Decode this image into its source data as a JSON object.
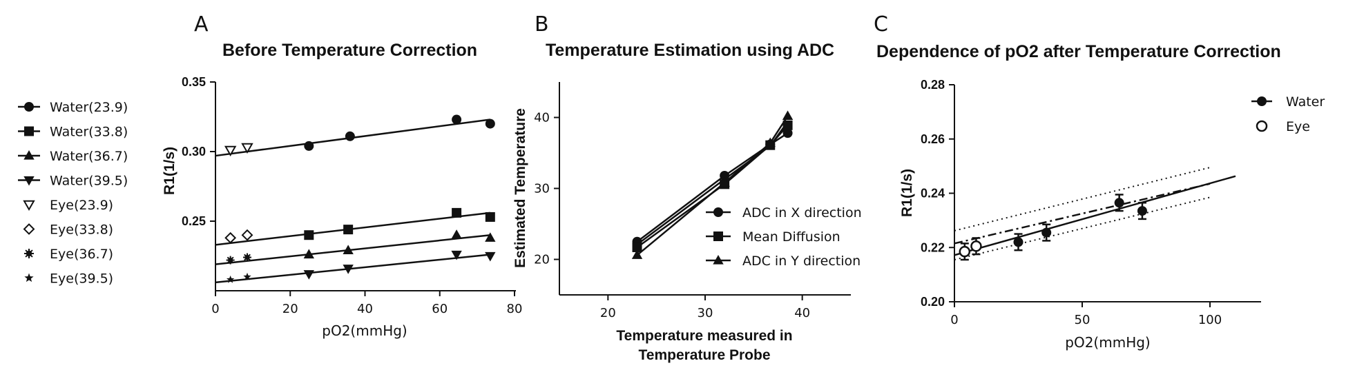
{
  "chart_data": [
    {
      "panel_letter": "A",
      "type": "scatter",
      "title": "Before Temperature Correction",
      "xlabel": "pO2(mmHg)",
      "ylabel": "R1(1/s)",
      "xlim": [
        0,
        80
      ],
      "ylim": [
        0.2,
        0.35
      ],
      "xticks": [
        0,
        20,
        40,
        60,
        80
      ],
      "yticks": [
        0.25,
        0.3,
        0.35
      ],
      "ytick_labels": [
        "0.25",
        "0.30",
        "0.35"
      ],
      "legend_position": "left",
      "series": [
        {
          "name": "Water(23.9)",
          "marker": "circle",
          "x": [
            25,
            36,
            64.5,
            73.5
          ],
          "y": [
            0.304,
            0.311,
            0.323,
            0.32
          ],
          "fit": [
            [
              0,
              0.297
            ],
            [
              73.5,
              0.323
            ]
          ]
        },
        {
          "name": "Water(33.8)",
          "marker": "square",
          "x": [
            25,
            35.5,
            64.5,
            73.5
          ],
          "y": [
            0.24,
            0.244,
            0.256,
            0.253
          ],
          "fit": [
            [
              0,
              0.233
            ],
            [
              73.5,
              0.256
            ]
          ]
        },
        {
          "name": "Water(36.7)",
          "marker": "triangle-up",
          "x": [
            25,
            35.5,
            64.5,
            73.5
          ],
          "y": [
            0.226,
            0.229,
            0.24,
            0.238
          ],
          "fit": [
            [
              0,
              0.219
            ],
            [
              73.5,
              0.24
            ]
          ]
        },
        {
          "name": "Water(39.5)",
          "marker": "triangle-down",
          "x": [
            25,
            35.5,
            64.5,
            73.5
          ],
          "y": [
            0.212,
            0.216,
            0.226,
            0.225
          ],
          "fit": [
            [
              0,
              0.206
            ],
            [
              73.5,
              0.226
            ]
          ]
        },
        {
          "name": "Eye(23.9)",
          "marker": "triangle-down-open",
          "x": [
            4,
            8.5
          ],
          "y": [
            0.301,
            0.303
          ]
        },
        {
          "name": "Eye(33.8)",
          "marker": "diamond-open",
          "x": [
            4,
            8.5
          ],
          "y": [
            0.238,
            0.24
          ]
        },
        {
          "name": "Eye(36.7)",
          "marker": "asterisk",
          "x": [
            4,
            8.5
          ],
          "y": [
            0.222,
            0.224
          ]
        },
        {
          "name": "Eye(39.5)",
          "marker": "star",
          "x": [
            4,
            8.5
          ],
          "y": [
            0.208,
            0.21
          ]
        }
      ]
    },
    {
      "panel_letter": "B",
      "type": "line",
      "title": "Temperature Estimation using ADC",
      "xlabel_lines": [
        "Temperature measured in",
        "Temperature Probe"
      ],
      "ylabel": "Estimated Temperature",
      "xlim": [
        15,
        45
      ],
      "ylim": [
        15,
        45
      ],
      "xticks": [
        20,
        30,
        40
      ],
      "yticks": [
        20,
        30,
        40
      ],
      "legend_position": "bottom-right",
      "series": [
        {
          "name": "ADC in X direction",
          "marker": "circle",
          "x": [
            23,
            32,
            36.7,
            38.5
          ],
          "y": [
            22.5,
            31.8,
            36.2,
            37.8
          ]
        },
        {
          "name": "Mean Diffusion",
          "marker": "square",
          "x": [
            23,
            32,
            36.7,
            38.5
          ],
          "y": [
            21.7,
            30.6,
            36.1,
            38.9
          ]
        },
        {
          "name": "ADC in Y direction",
          "marker": "triangle-up",
          "x": [
            23,
            32,
            36.7,
            38.5
          ],
          "y": [
            20.6,
            30.8,
            36.4,
            40.2
          ]
        }
      ],
      "extra_lines": [
        {
          "x": [
            23,
            32,
            36.7,
            38.5
          ],
          "y": [
            22.1,
            31.3,
            36.0,
            39.4
          ]
        }
      ]
    },
    {
      "panel_letter": "C",
      "type": "scatter",
      "title": "Dependence of pO2 after Temperature Correction",
      "xlabel": "pO2(mmHg)",
      "ylabel": "R1(1/s)",
      "xlim": [
        0,
        120
      ],
      "ylim": [
        0.2,
        0.28
      ],
      "xticks": [
        0,
        50,
        100
      ],
      "yticks": [
        0.2,
        0.22,
        0.24,
        0.26,
        0.28
      ],
      "ytick_labels": [
        "0.20",
        "0.22",
        "0.24",
        "0.26",
        "0.28"
      ],
      "legend_position": "top-right",
      "series": [
        {
          "name": "Water",
          "marker": "circle",
          "x": [
            25,
            36,
            64.5,
            73.5
          ],
          "y": [
            0.222,
            0.2255,
            0.2365,
            0.2335
          ],
          "err": [
            0.003,
            0.003,
            0.003,
            0.003
          ]
        },
        {
          "name": "Eye",
          "marker": "circle-open",
          "x": [
            4,
            8.5
          ],
          "y": [
            0.2185,
            0.2205
          ],
          "err": [
            0.003,
            0.003
          ]
        }
      ],
      "fit_line": [
        [
          0,
          0.2172
        ],
        [
          110,
          0.2463
        ]
      ],
      "confidence_band": {
        "upper": [
          [
            0,
            0.2262
          ],
          [
            100,
            0.2495
          ]
        ],
        "lower": [
          [
            0,
            0.2155
          ],
          [
            100,
            0.2385
          ]
        ]
      },
      "dashdot_line": [
        [
          0,
          0.2215
        ],
        [
          100,
          0.2435
        ]
      ]
    }
  ]
}
